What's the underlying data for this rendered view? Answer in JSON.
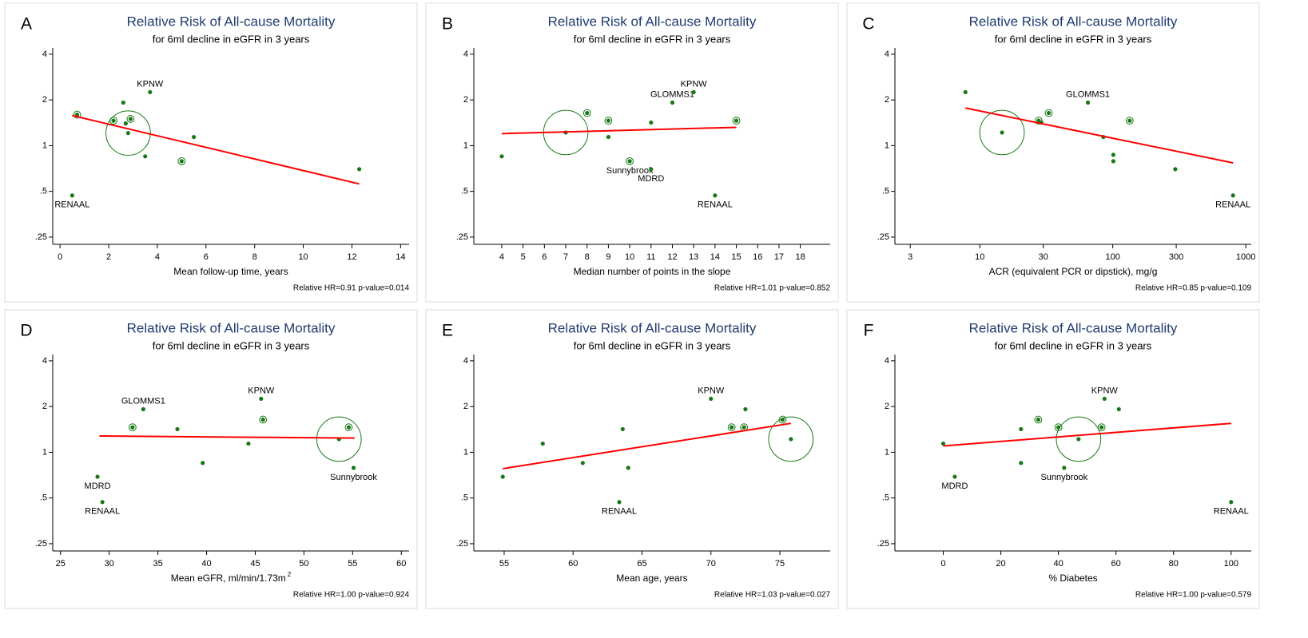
{
  "chart_data": [
    {
      "type": "scatter",
      "letter": "A",
      "title": "Relative Risk of All-cause Mortality",
      "subtitle": "for 6ml decline in eGFR in 3 years",
      "xlabel": "Mean follow-up time, years",
      "note": "Relative HR=0.91 p-value=0.014",
      "x": [
        0.7,
        0.5,
        2.2,
        2.6,
        2.7,
        2.9,
        2.8,
        3.7,
        3.5,
        5.0,
        5.5,
        12.3
      ],
      "y": [
        1.6,
        0.47,
        1.46,
        1.92,
        1.4,
        1.5,
        1.21,
        2.25,
        0.85,
        0.79,
        1.14,
        0.7
      ],
      "sizes": [
        4,
        1,
        4,
        1,
        1,
        4,
        160,
        1,
        1,
        4,
        1,
        1
      ],
      "labels": [
        null,
        "RENAAL",
        null,
        null,
        null,
        null,
        null,
        "KPNW",
        null,
        null,
        null,
        null
      ],
      "fit": {
        "x": [
          0.5,
          12.3
        ],
        "y": [
          1.58,
          0.56
        ]
      },
      "xlim": [
        -0.3,
        14.35
      ],
      "xticks": [
        0,
        2,
        4,
        6,
        8,
        10,
        12,
        14
      ],
      "xlog": false,
      "ylim": [
        0.224,
        4.4
      ],
      "yticks": [
        4,
        2,
        1,
        {
          "value": 0.5,
          "label": ".5"
        },
        {
          "value": 0.25,
          "label": ".25"
        }
      ],
      "ylog": true,
      "color": "#187818",
      "fit_color": "#ff0000"
    },
    {
      "type": "scatter",
      "letter": "B",
      "title": "Relative Risk of All-cause Mortality",
      "subtitle": "for 6ml decline in eGFR in 3 years",
      "xlabel": "Median number of points in the slope",
      "note": "Relative HR=1.01 p-value=0.852",
      "x": [
        4,
        7,
        8,
        9,
        9,
        10,
        11,
        11,
        12,
        13,
        14,
        15
      ],
      "y": [
        0.85,
        1.22,
        1.64,
        1.46,
        1.14,
        0.79,
        1.42,
        0.7,
        1.92,
        2.25,
        0.47,
        1.46
      ],
      "sizes": [
        1,
        160,
        4,
        4,
        1,
        4,
        1,
        1,
        1,
        1,
        1,
        4
      ],
      "labels": [
        null,
        null,
        null,
        null,
        null,
        "Sunnybrook",
        null,
        "MDRD",
        "GLOMMS1",
        "KPNW",
        "RENAAL",
        null
      ],
      "fit": {
        "x": [
          4,
          15
        ],
        "y": [
          1.2,
          1.32
        ]
      },
      "xlim": [
        2.69,
        19.4
      ],
      "xticks": [
        4,
        5,
        6,
        7,
        8,
        9,
        10,
        11,
        12,
        13,
        14,
        15,
        16,
        17,
        18
      ],
      "xlog": false,
      "ylim": [
        0.224,
        4.4
      ],
      "yticks": [
        4,
        2,
        1,
        {
          "value": 0.5,
          "label": ".5"
        },
        {
          "value": 0.25,
          "label": ".25"
        }
      ],
      "ylog": true,
      "color": "#187818",
      "fit_color": "#ff0000"
    },
    {
      "type": "scatter",
      "letter": "C",
      "title": "Relative Risk of All-cause Mortality",
      "subtitle": "for 6ml decline in eGFR in 3 years",
      "xlabel": "ACR (equivalent PCR or dipstick), mg/g",
      "note": "Relative HR=0.85 p-value=0.109",
      "x": [
        7.8,
        14.7,
        27.7,
        29,
        33,
        65,
        85,
        101,
        101,
        134,
        295,
        802
      ],
      "y": [
        2.25,
        1.22,
        1.46,
        1.42,
        1.64,
        1.92,
        1.14,
        0.87,
        0.79,
        1.46,
        0.7,
        0.47
      ],
      "sizes": [
        1,
        160,
        4,
        1,
        4,
        1,
        1,
        1,
        1,
        4,
        1,
        1
      ],
      "labels": [
        null,
        null,
        null,
        null,
        null,
        "GLOMMS1",
        null,
        null,
        null,
        null,
        null,
        "RENAAL"
      ],
      "fit": {
        "x": [
          7.8,
          802
        ],
        "y": [
          1.77,
          0.77
        ]
      },
      "xlim": [
        2.3,
        1100
      ],
      "xticks": [
        3,
        10,
        30,
        100,
        300,
        1000
      ],
      "xlog": true,
      "ylim": [
        0.224,
        4.4
      ],
      "yticks": [
        4,
        2,
        1,
        {
          "value": 0.5,
          "label": ".5"
        },
        {
          "value": 0.25,
          "label": ".25"
        }
      ],
      "ylog": true,
      "color": "#187818",
      "fit_color": "#ff0000"
    },
    {
      "type": "scatter",
      "letter": "D",
      "title": "Relative Risk of All-cause Mortality",
      "subtitle": "for 6ml decline in eGFR in 3 years",
      "xlabel": "Mean eGFR, ml/min/1.73m",
      "xlabel_sup": "2",
      "note": "Relative HR=1.00 p-value=0.924",
      "x": [
        28.8,
        29.3,
        32.4,
        33.5,
        37,
        39.6,
        44.3,
        45.6,
        45.8,
        53.6,
        54.6,
        55.1
      ],
      "y": [
        0.69,
        0.47,
        1.46,
        1.92,
        1.42,
        0.85,
        1.14,
        2.25,
        1.64,
        1.22,
        1.46,
        0.79
      ],
      "sizes": [
        1,
        1,
        4,
        1,
        1,
        1,
        1,
        1,
        4,
        160,
        4,
        1
      ],
      "labels": [
        "MDRD",
        "RENAAL",
        null,
        "GLOMMS1",
        null,
        null,
        null,
        "KPNW",
        null,
        null,
        null,
        "Sunnybrook"
      ],
      "fit": {
        "x": [
          29,
          55.2
        ],
        "y": [
          1.28,
          1.24
        ]
      },
      "xlim": [
        24.2,
        60.8
      ],
      "xticks": [
        25,
        30,
        35,
        40,
        45,
        50,
        55,
        60
      ],
      "xlog": false,
      "ylim": [
        0.224,
        4.4
      ],
      "yticks": [
        4,
        2,
        1,
        {
          "value": 0.5,
          "label": ".5"
        },
        {
          "value": 0.25,
          "label": ".25"
        }
      ],
      "ylog": true,
      "color": "#187818",
      "fit_color": "#ff0000"
    },
    {
      "type": "scatter",
      "letter": "E",
      "title": "Relative Risk of All-cause Mortality",
      "subtitle": "for 6ml decline in eGFR in 3 years",
      "xlabel": "Mean age, years",
      "note": "Relative HR=1.03 p-value=0.027",
      "x": [
        54.9,
        57.8,
        60.7,
        63.35,
        63.6,
        64,
        70,
        71.5,
        72.4,
        72.5,
        75.2,
        75.8
      ],
      "y": [
        0.69,
        1.14,
        0.85,
        0.47,
        1.42,
        0.79,
        2.25,
        1.46,
        1.46,
        1.92,
        1.64,
        1.22
      ],
      "sizes": [
        1,
        1,
        1,
        1,
        1,
        1,
        1,
        4,
        4,
        1,
        4,
        160
      ],
      "labels": [
        null,
        null,
        null,
        "RENAAL",
        null,
        null,
        "KPNW",
        null,
        null,
        null,
        null,
        null
      ],
      "fit": {
        "x": [
          54.9,
          75.8
        ],
        "y": [
          0.78,
          1.55
        ]
      },
      "xlim": [
        52.8,
        78.65
      ],
      "xticks": [
        55,
        60,
        65,
        70,
        75
      ],
      "xlog": false,
      "ylim": [
        0.224,
        4.4
      ],
      "yticks": [
        4,
        2,
        1,
        {
          "value": 0.5,
          "label": ".5"
        },
        {
          "value": 0.25,
          "label": ".25"
        }
      ],
      "ylog": true,
      "color": "#187818",
      "fit_color": "#ff0000"
    },
    {
      "type": "scatter",
      "letter": "F",
      "title": "Relative Risk of All-cause Mortality",
      "subtitle": "for 6ml decline in eGFR in 3 years",
      "xlabel": "% Diabetes",
      "note": "Relative HR=1.00 p-value=0.579",
      "x": [
        0,
        4,
        27,
        27,
        33,
        40,
        42,
        47,
        55,
        56,
        61,
        100
      ],
      "y": [
        1.14,
        0.69,
        1.42,
        0.85,
        1.64,
        1.46,
        0.79,
        1.22,
        1.46,
        2.25,
        1.92,
        0.47
      ],
      "sizes": [
        1,
        1,
        1,
        1,
        4,
        4,
        1,
        160,
        4,
        1,
        1,
        1
      ],
      "labels": [
        null,
        "MDRD",
        null,
        null,
        null,
        null,
        "Sunnybrook",
        null,
        null,
        "KPNW",
        null,
        "RENAAL"
      ],
      "fit": {
        "x": [
          0,
          100
        ],
        "y": [
          1.1,
          1.55
        ]
      },
      "xlim": [
        -16.8,
        107
      ],
      "xticks": [
        0,
        20,
        40,
        60,
        80,
        100
      ],
      "xlog": false,
      "ylim": [
        0.224,
        4.4
      ],
      "yticks": [
        4,
        2,
        1,
        {
          "value": 0.5,
          "label": ".5"
        },
        {
          "value": 0.25,
          "label": ".25"
        }
      ],
      "ylog": true,
      "color": "#187818",
      "fit_color": "#ff0000"
    }
  ]
}
